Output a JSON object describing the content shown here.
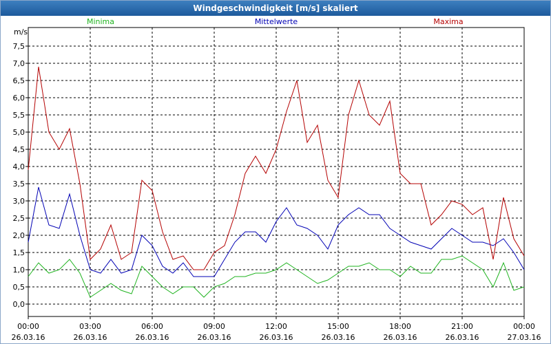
{
  "window": {
    "title": "Windgeschwindigkeit [m/s] skaliert"
  },
  "colors": {
    "minima": "#1fb31f",
    "mittelwerte": "#0000b4",
    "maxima": "#b40000"
  },
  "chart_data": {
    "type": "line",
    "title": "Windgeschwindigkeit [m/s] skaliert",
    "ylabel": "m/s",
    "ylim": [
      -0.4,
      7.7
    ],
    "yticks": [
      "0,0",
      "0,5",
      "1,0",
      "1,5",
      "2,0",
      "2,5",
      "3,0",
      "3,5",
      "4,0",
      "4,5",
      "5,0",
      "5,5",
      "6,0",
      "6,5",
      "7,0",
      "7,5"
    ],
    "xlim_hours": [
      0,
      24
    ],
    "xticks": [
      {
        "time": "00:00",
        "date": "26.03.16"
      },
      {
        "time": "03:00",
        "date": "26.03.16"
      },
      {
        "time": "06:00",
        "date": "26.03.16"
      },
      {
        "time": "09:00",
        "date": "26.03.16"
      },
      {
        "time": "12:00",
        "date": "26.03.16"
      },
      {
        "time": "15:00",
        "date": "26.03.16"
      },
      {
        "time": "18:00",
        "date": "26.03.16"
      },
      {
        "time": "21:00",
        "date": "26.03.16"
      },
      {
        "time": "00:00",
        "date": "27.03.16"
      }
    ],
    "grid": true,
    "x_hours": [
      0,
      0.5,
      1,
      1.5,
      2,
      2.5,
      3,
      3.5,
      4,
      4.5,
      5,
      5.5,
      6,
      6.5,
      7,
      7.5,
      8,
      8.5,
      9,
      9.5,
      10,
      10.5,
      11,
      11.5,
      12,
      12.5,
      13,
      13.5,
      14,
      14.5,
      15,
      15.5,
      16,
      16.5,
      17,
      17.5,
      18,
      18.5,
      19,
      19.5,
      20,
      20.5,
      21,
      21.5,
      22,
      22.5,
      23,
      23.5,
      24
    ],
    "series": [
      {
        "name": "Minima",
        "values": [
          0.8,
          1.2,
          0.9,
          1.0,
          1.3,
          0.9,
          0.2,
          0.4,
          0.6,
          0.4,
          0.3,
          1.1,
          0.8,
          0.5,
          0.3,
          0.5,
          0.5,
          0.2,
          0.5,
          0.6,
          0.8,
          0.8,
          0.9,
          0.9,
          1.0,
          1.2,
          1.0,
          0.8,
          0.6,
          0.7,
          0.9,
          1.1,
          1.1,
          1.2,
          1.0,
          1.0,
          0.8,
          1.1,
          0.9,
          0.9,
          1.3,
          1.3,
          1.4,
          1.2,
          1.0,
          0.5,
          1.2,
          0.4,
          0.5
        ]
      },
      {
        "name": "Mittelwerte",
        "values": [
          1.8,
          3.4,
          2.3,
          2.2,
          3.2,
          2.0,
          1.0,
          0.9,
          1.3,
          0.9,
          1.0,
          2.0,
          1.7,
          1.1,
          0.9,
          1.2,
          0.8,
          0.8,
          0.8,
          1.3,
          1.8,
          2.1,
          2.1,
          1.8,
          2.4,
          2.8,
          2.3,
          2.2,
          2.0,
          1.6,
          2.3,
          2.6,
          2.8,
          2.6,
          2.6,
          2.2,
          2.0,
          1.8,
          1.7,
          1.6,
          1.9,
          2.2,
          2.0,
          1.8,
          1.8,
          1.7,
          1.9,
          1.5,
          1.0
        ]
      },
      {
        "name": "Maxima",
        "values": [
          3.9,
          6.9,
          5.0,
          4.5,
          5.1,
          3.5,
          1.3,
          1.6,
          2.3,
          1.3,
          1.5,
          3.6,
          3.3,
          2.1,
          1.3,
          1.4,
          1.0,
          1.0,
          1.5,
          1.7,
          2.6,
          3.8,
          4.3,
          3.8,
          4.5,
          5.6,
          6.5,
          4.7,
          5.2,
          3.6,
          3.1,
          5.5,
          6.5,
          5.5,
          5.2,
          5.9,
          3.8,
          3.5,
          3.5,
          2.3,
          2.6,
          3.0,
          2.9,
          2.6,
          2.8,
          1.3,
          3.1,
          1.9,
          1.4
        ]
      }
    ]
  }
}
